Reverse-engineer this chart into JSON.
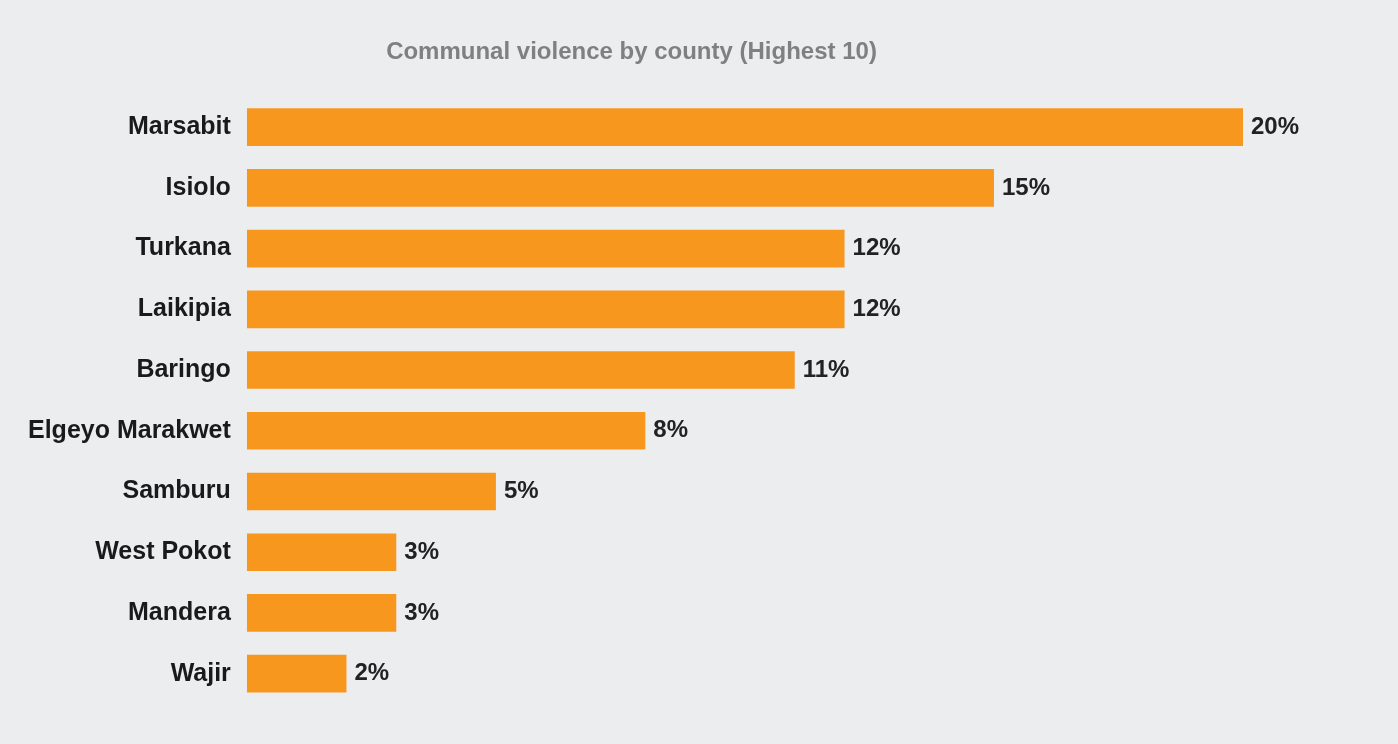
{
  "chart_data": {
    "type": "bar",
    "orientation": "horizontal",
    "title": "Communal violence by county (Highest 10)",
    "categories": [
      "Marsabit",
      "Isiolo",
      "Turkana",
      "Laikipia",
      "Baringo",
      "Elgeyo Marakwet",
      "Samburu",
      "West Pokot",
      "Mandera",
      "Wajir"
    ],
    "values": [
      20,
      15,
      12,
      12,
      11,
      8,
      5,
      3,
      3,
      2
    ],
    "value_labels": [
      "20%",
      "15%",
      "12%",
      "12%",
      "11%",
      "8%",
      "5%",
      "3%",
      "3%",
      "2%"
    ],
    "color": "#f7971e",
    "legend": false,
    "tick_labels": "y"
  }
}
